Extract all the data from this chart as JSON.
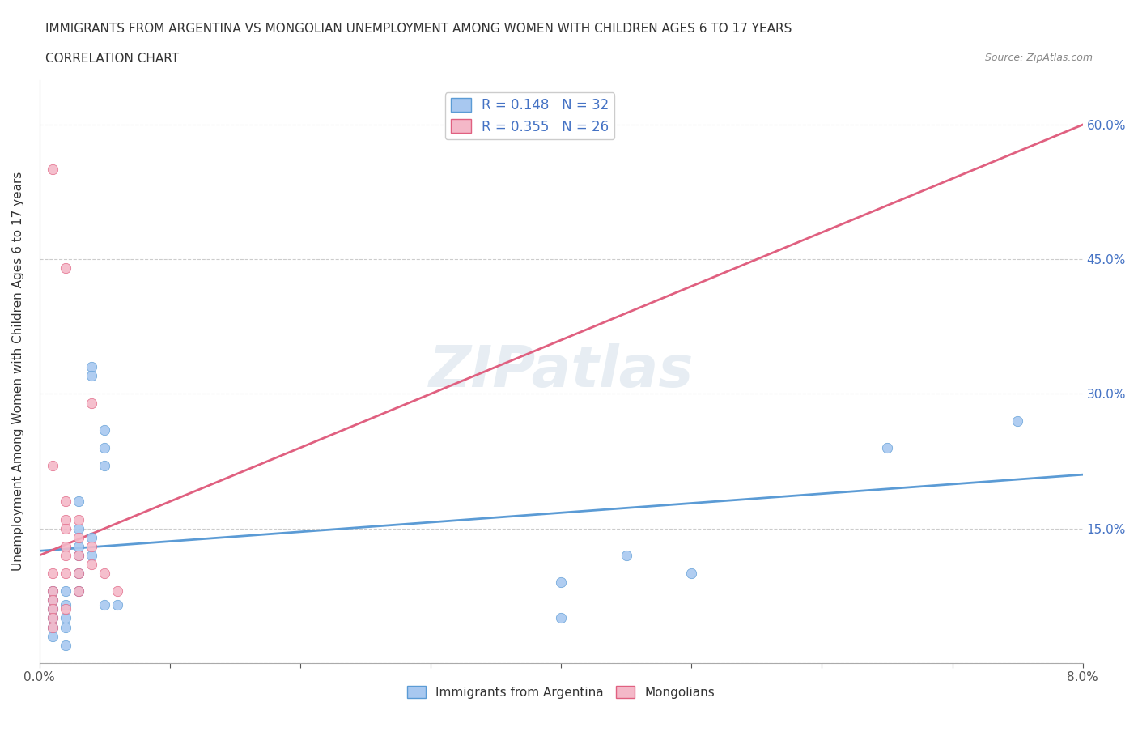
{
  "title_line1": "IMMIGRANTS FROM ARGENTINA VS MONGOLIAN UNEMPLOYMENT AMONG WOMEN WITH CHILDREN AGES 6 TO 17 YEARS",
  "title_line2": "CORRELATION CHART",
  "source_text": "Source: ZipAtlas.com",
  "ylabel": "Unemployment Among Women with Children Ages 6 to 17 years",
  "xlim": [
    0.0,
    0.08
  ],
  "ylim": [
    0.0,
    0.65
  ],
  "xticks": [
    0.0,
    0.01,
    0.02,
    0.03,
    0.04,
    0.05,
    0.06,
    0.07,
    0.08
  ],
  "xtick_labels": [
    "0.0%",
    "",
    "",
    "",
    "",
    "",
    "",
    "",
    "8.0%"
  ],
  "yticks": [
    0.0,
    0.15,
    0.3,
    0.45,
    0.6
  ],
  "ytick_labels": [
    "",
    "15.0%",
    "30.0%",
    "45.0%",
    "60.0%"
  ],
  "watermark": "ZIPatlas",
  "legend_r1": "R = 0.148   N = 32",
  "legend_r2": "R = 0.355   N = 26",
  "argentina_color": "#a8c8f0",
  "mongolia_color": "#f4b8c8",
  "argentina_line_color": "#5b9bd5",
  "mongolia_line_color": "#e06080",
  "argentina_scatter": [
    [
      0.001,
      0.08
    ],
    [
      0.001,
      0.07
    ],
    [
      0.001,
      0.06
    ],
    [
      0.001,
      0.05
    ],
    [
      0.001,
      0.04
    ],
    [
      0.001,
      0.03
    ],
    [
      0.002,
      0.08
    ],
    [
      0.002,
      0.065
    ],
    [
      0.002,
      0.05
    ],
    [
      0.002,
      0.04
    ],
    [
      0.002,
      0.02
    ],
    [
      0.003,
      0.18
    ],
    [
      0.003,
      0.15
    ],
    [
      0.003,
      0.13
    ],
    [
      0.003,
      0.12
    ],
    [
      0.003,
      0.1
    ],
    [
      0.003,
      0.08
    ],
    [
      0.004,
      0.33
    ],
    [
      0.004,
      0.32
    ],
    [
      0.004,
      0.14
    ],
    [
      0.004,
      0.12
    ],
    [
      0.005,
      0.26
    ],
    [
      0.005,
      0.24
    ],
    [
      0.005,
      0.22
    ],
    [
      0.005,
      0.065
    ],
    [
      0.006,
      0.065
    ],
    [
      0.04,
      0.09
    ],
    [
      0.04,
      0.05
    ],
    [
      0.045,
      0.12
    ],
    [
      0.05,
      0.1
    ],
    [
      0.065,
      0.24
    ],
    [
      0.075,
      0.27
    ]
  ],
  "mongolia_scatter": [
    [
      0.001,
      0.55
    ],
    [
      0.001,
      0.22
    ],
    [
      0.001,
      0.1
    ],
    [
      0.001,
      0.08
    ],
    [
      0.001,
      0.07
    ],
    [
      0.001,
      0.06
    ],
    [
      0.001,
      0.05
    ],
    [
      0.001,
      0.04
    ],
    [
      0.002,
      0.44
    ],
    [
      0.002,
      0.18
    ],
    [
      0.002,
      0.16
    ],
    [
      0.002,
      0.15
    ],
    [
      0.002,
      0.13
    ],
    [
      0.002,
      0.12
    ],
    [
      0.002,
      0.1
    ],
    [
      0.002,
      0.06
    ],
    [
      0.003,
      0.16
    ],
    [
      0.003,
      0.14
    ],
    [
      0.003,
      0.12
    ],
    [
      0.003,
      0.1
    ],
    [
      0.003,
      0.08
    ],
    [
      0.004,
      0.29
    ],
    [
      0.004,
      0.13
    ],
    [
      0.004,
      0.11
    ],
    [
      0.005,
      0.1
    ],
    [
      0.006,
      0.08
    ]
  ],
  "argentina_trendline": [
    [
      0.0,
      0.125
    ],
    [
      0.08,
      0.21
    ]
  ],
  "mongolia_trendline": [
    [
      0.0,
      0.12
    ],
    [
      0.08,
      0.6
    ]
  ]
}
